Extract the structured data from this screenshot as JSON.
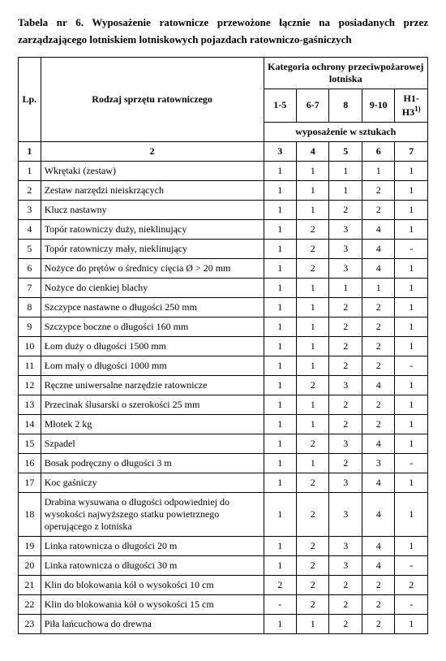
{
  "title": "Tabela nr 6. Wyposażenie ratownicze przewożone łącznie na posiadanych przez zarządzającego lotniskiem lotniskowych pojazdach ratowniczo-gaśniczych",
  "headers": {
    "lp": "Lp.",
    "equip": "Rodzaj sprzętu ratowniczego",
    "category": "Kategoria ochrony przeciwpożarowej lotniska",
    "cols": [
      "1-5",
      "6-7",
      "8",
      "9-10",
      "H1-H3"
    ],
    "sup": "1)",
    "units": "wyposażenie w sztukach",
    "numrow": [
      "1",
      "2",
      "3",
      "4",
      "5",
      "6",
      "7"
    ]
  },
  "rows": [
    {
      "n": "1",
      "d": "Wkrętaki (zestaw)",
      "v": [
        "1",
        "1",
        "1",
        "1",
        "1"
      ]
    },
    {
      "n": "2",
      "d": "Zestaw narzędzi nieiskrzących",
      "v": [
        "1",
        "1",
        "1",
        "2",
        "1"
      ]
    },
    {
      "n": "3",
      "d": "Klucz nastawny",
      "v": [
        "1",
        "1",
        "2",
        "2",
        "1"
      ]
    },
    {
      "n": "4",
      "d": "Topór ratowniczy duży, nieklinujący",
      "v": [
        "1",
        "2",
        "3",
        "4",
        "1"
      ]
    },
    {
      "n": "5",
      "d": "Topór ratowniczy mały, nieklinujący",
      "v": [
        "1",
        "2",
        "3",
        "4",
        "-"
      ]
    },
    {
      "n": "6",
      "d": "Nożyce do prętów o średnicy cięcia Ø > 20 mm",
      "v": [
        "1",
        "2",
        "3",
        "4",
        "1"
      ]
    },
    {
      "n": "7",
      "d": "Nożyce do cienkiej blachy",
      "v": [
        "1",
        "1",
        "1",
        "1",
        "1"
      ]
    },
    {
      "n": "8",
      "d": "Szczypce nastawne o długości 250 mm",
      "v": [
        "1",
        "1",
        "2",
        "2",
        "1"
      ]
    },
    {
      "n": "9",
      "d": "Szczypce boczne o długości 160 mm",
      "v": [
        "1",
        "1",
        "2",
        "2",
        "1"
      ]
    },
    {
      "n": "10",
      "d": "Łom duży o długości 1500 mm",
      "v": [
        "1",
        "1",
        "2",
        "2",
        "1"
      ]
    },
    {
      "n": "11",
      "d": "Łom mały o długości 1000 mm",
      "v": [
        "1",
        "1",
        "2",
        "2",
        "-"
      ]
    },
    {
      "n": "12",
      "d": "Ręczne uniwersalne narzędzie ratownicze",
      "v": [
        "1",
        "2",
        "3",
        "4",
        "1"
      ]
    },
    {
      "n": "13",
      "d": "Przecinak ślusarski o szerokości 25 mm",
      "v": [
        "1",
        "1",
        "2",
        "2",
        "1"
      ]
    },
    {
      "n": "14",
      "d": "Młotek 2 kg",
      "v": [
        "1",
        "1",
        "2",
        "2",
        "1"
      ]
    },
    {
      "n": "15",
      "d": "Szpadel",
      "v": [
        "1",
        "2",
        "3",
        "4",
        "1"
      ]
    },
    {
      "n": "16",
      "d": "Bosak podręczny o długości 3 m",
      "v": [
        "1",
        "1",
        "2",
        "3",
        "-"
      ]
    },
    {
      "n": "17",
      "d": "Koc gaśniczy",
      "v": [
        "1",
        "2",
        "3",
        "4",
        "1"
      ]
    },
    {
      "n": "18",
      "d": "Drabina wysuwana o długości odpowiedniej do wysokości najwyższego statku powietrznego operującego z lotniska",
      "v": [
        "1",
        "2",
        "3",
        "4",
        "1"
      ]
    },
    {
      "n": "19",
      "d": "Linka ratownicza o długości 20 m",
      "v": [
        "1",
        "2",
        "3",
        "4",
        "1"
      ]
    },
    {
      "n": "20",
      "d": "Linka ratownicza o długości 30 m",
      "v": [
        "1",
        "2",
        "3",
        "4",
        "-"
      ]
    },
    {
      "n": "21",
      "d": "Klin do blokowania kół o wysokości 10 cm",
      "v": [
        "2",
        "2",
        "2",
        "2",
        "2"
      ]
    },
    {
      "n": "22",
      "d": "Klin do blokowania kół o wysokości 15 cm",
      "v": [
        "-",
        "2",
        "2",
        "2",
        "-"
      ]
    },
    {
      "n": "23",
      "d": "Piła łańcuchowa do drewna",
      "v": [
        "1",
        "1",
        "2",
        "2",
        "1"
      ]
    }
  ]
}
